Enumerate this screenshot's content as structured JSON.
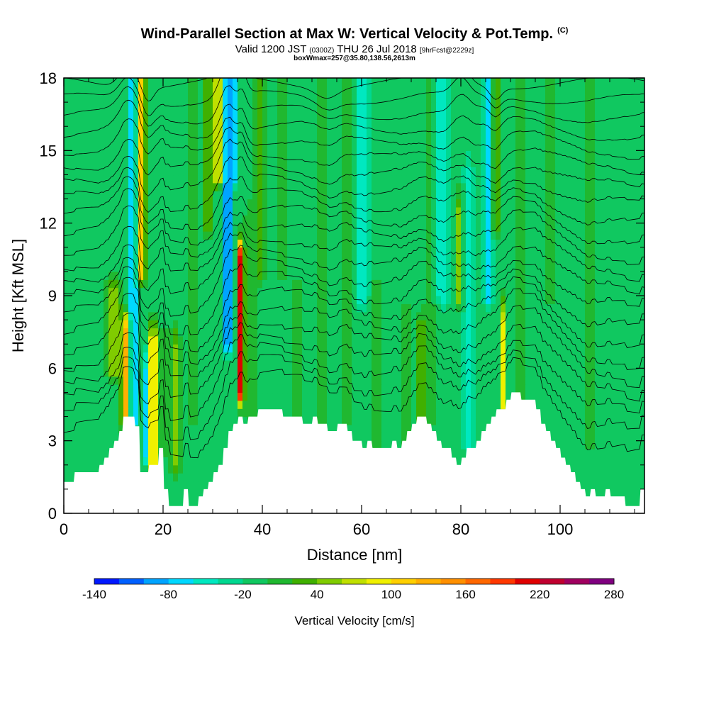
{
  "header": {
    "title": "Wind-Parallel Section at Max W: Vertical Velocity & Pot.Temp.",
    "copyright": "(C)",
    "valid_prefix": "Valid 1200 JST",
    "valid_utc": "(0300Z)",
    "valid_date": "THU 26 Jul 2018",
    "forecast_info": "[9hrFcst@2229z]",
    "boxwmax": "boxWmax=257@35.80,138.56,2613m"
  },
  "chart_data": {
    "type": "heatmap",
    "xlabel": "Distance [nm]",
    "ylabel": "Height [Kft MSL]",
    "xlim": [
      0,
      117
    ],
    "ylim": [
      0,
      18
    ],
    "x_ticks": [
      "0",
      "20",
      "40",
      "60",
      "80",
      "100"
    ],
    "x_tick_values": [
      0,
      20,
      40,
      60,
      80,
      100
    ],
    "y_ticks": [
      "0",
      "3",
      "6",
      "9",
      "12",
      "15",
      "18"
    ],
    "y_tick_values": [
      0,
      3,
      6,
      9,
      12,
      15,
      18
    ],
    "colorbar": {
      "title": "Vertical Velocity [cm/s]",
      "min": -140,
      "max": 280,
      "step": 20,
      "labels": [
        "-140",
        "-80",
        "-20",
        "40",
        "100",
        "160",
        "220",
        "280"
      ],
      "label_values": [
        -140,
        -80,
        -20,
        40,
        100,
        160,
        220,
        280
      ],
      "colors": [
        "#0018ff",
        "#0060ff",
        "#00a4ff",
        "#00d8ff",
        "#00e8c0",
        "#00d890",
        "#10c860",
        "#20b830",
        "#40b000",
        "#80cc00",
        "#c0e000",
        "#f0f000",
        "#ffd000",
        "#ffb000",
        "#ff9000",
        "#ff6800",
        "#ff3800",
        "#e00000",
        "#c00030",
        "#a00060",
        "#800080"
      ]
    },
    "background_value": -10,
    "terrain_kft": [
      [
        0,
        1.3
      ],
      [
        2,
        1.3
      ],
      [
        2.2,
        1.7
      ],
      [
        7,
        1.7
      ],
      [
        7.2,
        2
      ],
      [
        8,
        2
      ],
      [
        8.2,
        2.3
      ],
      [
        9,
        2.3
      ],
      [
        9.2,
        2.7
      ],
      [
        10,
        2.7
      ],
      [
        10.2,
        3
      ],
      [
        11,
        3
      ],
      [
        11.2,
        3.4
      ],
      [
        11.8,
        3.4
      ],
      [
        12,
        4
      ],
      [
        14.2,
        4
      ],
      [
        14.4,
        3.6
      ],
      [
        15.2,
        3.6
      ],
      [
        15.4,
        1.7
      ],
      [
        17,
        1.7
      ],
      [
        17.2,
        2
      ],
      [
        19,
        2
      ],
      [
        19.2,
        2.7
      ],
      [
        20,
        2.7
      ],
      [
        20.2,
        1
      ],
      [
        21,
        1
      ],
      [
        21.2,
        0.3
      ],
      [
        24,
        0.3
      ],
      [
        24.2,
        1
      ],
      [
        25,
        1
      ],
      [
        25.2,
        0.3
      ],
      [
        27,
        0.3
      ],
      [
        27.2,
        0.7
      ],
      [
        28,
        0.7
      ],
      [
        28.2,
        1
      ],
      [
        29,
        1
      ],
      [
        29.2,
        1.3
      ],
      [
        30,
        1.3
      ],
      [
        30.2,
        1.7
      ],
      [
        31,
        1.7
      ],
      [
        31.2,
        2
      ],
      [
        32,
        2
      ],
      [
        32.2,
        2.7
      ],
      [
        33,
        2.7
      ],
      [
        33.2,
        3.4
      ],
      [
        34,
        3.4
      ],
      [
        34.2,
        3.7
      ],
      [
        35,
        3.7
      ],
      [
        35.2,
        4
      ],
      [
        36,
        4
      ],
      [
        36.2,
        3.7
      ],
      [
        37,
        3.7
      ],
      [
        37.2,
        4
      ],
      [
        39,
        4
      ],
      [
        39.2,
        4.3
      ],
      [
        44,
        4.3
      ],
      [
        44.2,
        4
      ],
      [
        48,
        4
      ],
      [
        48.2,
        3.7
      ],
      [
        50,
        3.7
      ],
      [
        50.2,
        4
      ],
      [
        51,
        4
      ],
      [
        51.2,
        3.7
      ],
      [
        53,
        3.7
      ],
      [
        53.2,
        3.4
      ],
      [
        55,
        3.4
      ],
      [
        55.2,
        3.7
      ],
      [
        57,
        3.7
      ],
      [
        57.2,
        3.4
      ],
      [
        58,
        3.4
      ],
      [
        58.2,
        3
      ],
      [
        60,
        3
      ],
      [
        60.2,
        2.7
      ],
      [
        61,
        2.7
      ],
      [
        61.2,
        3
      ],
      [
        62,
        3
      ],
      [
        62.2,
        2.7
      ],
      [
        66,
        2.7
      ],
      [
        66.2,
        3
      ],
      [
        67,
        3
      ],
      [
        67.2,
        2.7
      ],
      [
        68,
        2.7
      ],
      [
        68.2,
        3
      ],
      [
        69,
        3
      ],
      [
        69.2,
        3.4
      ],
      [
        70,
        3.4
      ],
      [
        70.2,
        3.7
      ],
      [
        71,
        3.7
      ],
      [
        71.2,
        4
      ],
      [
        73,
        4
      ],
      [
        73.2,
        3.7
      ],
      [
        74,
        3.7
      ],
      [
        74.2,
        3.4
      ],
      [
        75,
        3.4
      ],
      [
        75.2,
        3
      ],
      [
        76,
        3
      ],
      [
        76.2,
        2.7
      ],
      [
        78,
        2.7
      ],
      [
        78.2,
        2.3
      ],
      [
        79,
        2.3
      ],
      [
        79.2,
        2
      ],
      [
        80,
        2
      ],
      [
        80.2,
        2.3
      ],
      [
        81,
        2.3
      ],
      [
        81.2,
        2.7
      ],
      [
        83,
        2.7
      ],
      [
        83.2,
        3
      ],
      [
        84,
        3
      ],
      [
        84.2,
        3.4
      ],
      [
        85,
        3.4
      ],
      [
        85.2,
        3.7
      ],
      [
        86,
        3.7
      ],
      [
        86.2,
        4
      ],
      [
        87,
        4
      ],
      [
        87.2,
        4.3
      ],
      [
        89,
        4.3
      ],
      [
        89.2,
        4.7
      ],
      [
        90,
        4.7
      ],
      [
        90.2,
        5
      ],
      [
        92,
        5
      ],
      [
        92.2,
        4.7
      ],
      [
        95,
        4.7
      ],
      [
        95.2,
        4.3
      ],
      [
        96,
        4.3
      ],
      [
        96.2,
        3.7
      ],
      [
        97,
        3.7
      ],
      [
        97.2,
        3.4
      ],
      [
        98,
        3.4
      ],
      [
        98.2,
        3
      ],
      [
        99,
        3
      ],
      [
        99.2,
        2.7
      ],
      [
        100,
        2.7
      ],
      [
        100.2,
        2.3
      ],
      [
        101,
        2.3
      ],
      [
        101.2,
        2
      ],
      [
        102,
        2
      ],
      [
        102.2,
        1.7
      ],
      [
        103,
        1.7
      ],
      [
        103.2,
        1.3
      ],
      [
        104,
        1.3
      ],
      [
        104.2,
        1
      ],
      [
        105,
        1
      ],
      [
        105.2,
        0.7
      ],
      [
        106,
        0.7
      ],
      [
        106.2,
        1
      ],
      [
        107,
        1
      ],
      [
        107.2,
        0.7
      ],
      [
        109,
        0.7
      ],
      [
        109.2,
        1
      ],
      [
        110,
        1
      ],
      [
        110.2,
        0.7
      ],
      [
        113,
        0.7
      ],
      [
        113.2,
        0.3
      ],
      [
        116,
        0.3
      ],
      [
        116.2,
        1
      ],
      [
        117,
        1
      ]
    ],
    "w_features": [
      {
        "x": 10,
        "z0": 6,
        "z1": 9,
        "sx": 1.4,
        "w": 70
      },
      {
        "x": 12.5,
        "z0": 4,
        "z1": 7.5,
        "sx": 0.9,
        "w": 140
      },
      {
        "x": 14,
        "z0": 4,
        "z1": 18,
        "sx": 0.8,
        "w": -90
      },
      {
        "x": 15.5,
        "z0": 10,
        "z1": 18,
        "sx": 0.9,
        "w": 130
      },
      {
        "x": 18,
        "z0": 2,
        "z1": 7,
        "sx": 0.9,
        "w": 130
      },
      {
        "x": 16.5,
        "z0": 2.5,
        "z1": 6,
        "sx": 0.6,
        "w": -60
      },
      {
        "x": 20,
        "z0": 2.5,
        "z1": 7,
        "sx": 0.9,
        "w": 20
      },
      {
        "x": 22.5,
        "z0": 2,
        "z1": 7,
        "sx": 0.9,
        "w": 50
      },
      {
        "x": 26,
        "z0": 4,
        "z1": 18,
        "sx": 1,
        "w": 25
      },
      {
        "x": 29,
        "z0": 12,
        "z1": 18,
        "sx": 0.9,
        "w": 50
      },
      {
        "x": 31,
        "z0": 14,
        "z1": 18,
        "sx": 0.8,
        "w": 120
      },
      {
        "x": 33,
        "z0": 7,
        "z1": 18,
        "sx": 0.7,
        "w": -120
      },
      {
        "x": 34.5,
        "z0": 14,
        "z1": 18,
        "sx": 0.6,
        "w": -60
      },
      {
        "x": 35.7,
        "z0": 5,
        "z1": 10.5,
        "sx": 0.55,
        "w": 260
      },
      {
        "x": 37.5,
        "z0": 4,
        "z1": 12,
        "sx": 1.1,
        "w": 25
      },
      {
        "x": 39.5,
        "z0": 10,
        "z1": 18,
        "sx": 1.2,
        "w": 35
      },
      {
        "x": 44,
        "z0": 10,
        "z1": 18,
        "sx": 1.4,
        "w": 25
      },
      {
        "x": 47,
        "z0": 4,
        "z1": 9,
        "sx": 1.2,
        "w": 20
      },
      {
        "x": 52,
        "z0": 4,
        "z1": 18,
        "sx": 1.1,
        "w": 30
      },
      {
        "x": 57,
        "z0": 4,
        "z1": 18,
        "sx": 1.1,
        "w": 25
      },
      {
        "x": 60,
        "z0": 9,
        "z1": 18,
        "sx": 1.4,
        "w": -40
      },
      {
        "x": 63,
        "z0": 3,
        "z1": 9,
        "sx": 1,
        "w": 25
      },
      {
        "x": 69,
        "z0": 3,
        "z1": 8,
        "sx": 1,
        "w": 30
      },
      {
        "x": 72,
        "z0": 4,
        "z1": 7.5,
        "sx": 0.9,
        "w": 55
      },
      {
        "x": 74,
        "z0": 4,
        "z1": 18,
        "sx": 1.1,
        "w": 25
      },
      {
        "x": 76,
        "z0": 9,
        "z1": 18,
        "sx": 1.6,
        "w": -40
      },
      {
        "x": 79.5,
        "z0": 9,
        "z1": 12.5,
        "sx": 0.8,
        "w": 60
      },
      {
        "x": 81.5,
        "z0": 3,
        "z1": 14,
        "sx": 0.9,
        "w": -40
      },
      {
        "x": 85.5,
        "z0": 9,
        "z1": 18,
        "sx": 0.9,
        "w": -60
      },
      {
        "x": 87,
        "z0": 12,
        "z1": 18,
        "sx": 0.8,
        "w": 60
      },
      {
        "x": 88.5,
        "z0": 4.3,
        "z1": 8,
        "sx": 0.5,
        "w": 90
      },
      {
        "x": 92,
        "z0": 5,
        "z1": 18,
        "sx": 1.2,
        "w": 20
      },
      {
        "x": 98,
        "z0": 9,
        "z1": 18,
        "sx": 1.4,
        "w": 15
      },
      {
        "x": 106,
        "z0": 3,
        "z1": 18,
        "sx": 1.6,
        "w": 15
      }
    ],
    "theta_contours": {
      "count": 22,
      "bottom_kft": 2.3,
      "top_kft": 17.8
    }
  }
}
